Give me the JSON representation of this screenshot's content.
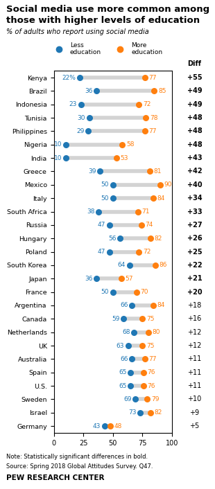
{
  "chart_data": {
    "type": "dumbbell",
    "orientation": "horizontal",
    "title": "Social media use more common among\nthose with higher levels of education",
    "subtitle": "% of adults who report using social media",
    "categories": [
      "Kenya",
      "Brazil",
      "Indonesia",
      "Tunisia",
      "Philippines",
      "Nigeria",
      "India",
      "Greece",
      "Mexico",
      "Italy",
      "South Africa",
      "Russia",
      "Hungary",
      "Poland",
      "South Korea",
      "Japan",
      "France",
      "Argentina",
      "Canada",
      "Netherlands",
      "UK",
      "Australia",
      "Spain",
      "U.S.",
      "Sweden",
      "Israel",
      "Germany"
    ],
    "series": [
      {
        "name": "Less\neducation",
        "values": [
          22,
          36,
          23,
          30,
          29,
          10,
          10,
          39,
          50,
          50,
          38,
          47,
          56,
          47,
          64,
          36,
          50,
          66,
          59,
          68,
          63,
          66,
          65,
          65,
          69,
          73,
          43
        ],
        "value_labels": [
          "22%",
          "36",
          "23",
          "30",
          "29",
          "10",
          "10",
          "39",
          "50",
          "50",
          "38",
          "47",
          "56",
          "47",
          "64",
          "36",
          "50",
          "66",
          "59",
          "68",
          "63",
          "66",
          "65",
          "65",
          "69",
          "73",
          "43"
        ]
      },
      {
        "name": "More\neducation",
        "values": [
          77,
          85,
          72,
          78,
          77,
          58,
          53,
          81,
          90,
          84,
          71,
          74,
          82,
          72,
          86,
          57,
          70,
          84,
          75,
          80,
          75,
          77,
          76,
          76,
          79,
          82,
          48
        ]
      }
    ],
    "diff_header": "Diff",
    "diff": [
      "+55",
      "+49",
      "+49",
      "+48",
      "+48",
      "+48",
      "+43",
      "+42",
      "+40",
      "+34",
      "+33",
      "+27",
      "+26",
      "+25",
      "+22",
      "+21",
      "+20",
      "+18",
      "+16",
      "+12",
      "+12",
      "+11",
      "+11",
      "+11",
      "+10",
      "+9",
      "+5"
    ],
    "diff_bold": [
      true,
      true,
      true,
      true,
      true,
      true,
      true,
      true,
      true,
      true,
      true,
      true,
      true,
      true,
      true,
      true,
      true,
      false,
      false,
      false,
      false,
      false,
      false,
      false,
      false,
      false,
      false
    ],
    "note": "Note: Statistically significant differences in bold.",
    "source_note": "Source: Spring 2018 Global Attitudes Survey. Q47.",
    "credit": "PEW RESEARCH CENTER",
    "xlim": [
      0,
      100
    ],
    "xticks": [
      0,
      25,
      50,
      75,
      100
    ],
    "data_labels": true,
    "legend": "upper center",
    "grid": false
  }
}
